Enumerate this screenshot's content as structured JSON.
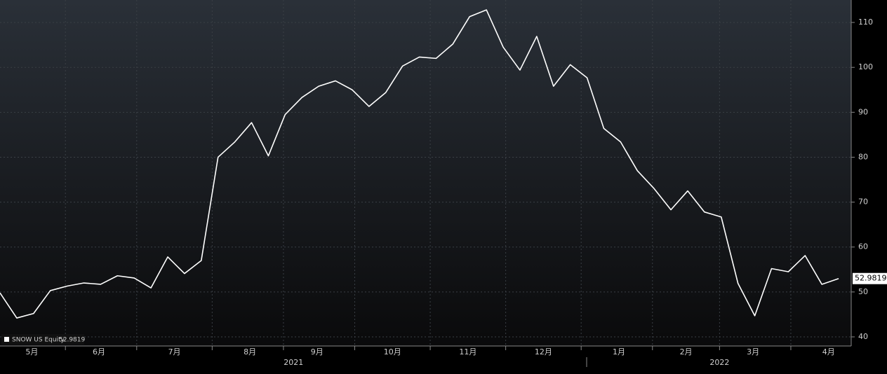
{
  "chart_data": {
    "type": "line",
    "x": [
      0,
      1,
      2,
      3,
      4,
      5,
      6,
      7,
      8,
      9,
      10,
      11,
      12,
      13,
      14,
      15,
      16,
      17,
      18,
      19,
      20,
      21,
      22,
      23,
      24,
      25,
      26,
      27,
      28,
      29,
      30,
      31,
      32,
      33,
      34,
      35,
      36,
      37,
      38,
      39,
      40,
      41,
      42,
      43,
      44,
      45,
      46,
      47,
      48,
      49,
      50
    ],
    "series": [
      {
        "name": "SNOW US Equity",
        "color": "#ffffff",
        "values": [
          49.8,
          44.2,
          45.2,
          50.3,
          51.3,
          52.0,
          51.7,
          53.6,
          53.1,
          50.9,
          57.8,
          54.1,
          57.0,
          80.0,
          83.4,
          87.7,
          80.3,
          89.5,
          93.3,
          95.8,
          97.0,
          95.0,
          91.3,
          94.4,
          100.3,
          102.3,
          102.0,
          105.2,
          111.3,
          112.8,
          104.5,
          99.4,
          106.9,
          95.8,
          100.6,
          97.7,
          86.4,
          83.4,
          77.0,
          73.0,
          68.3,
          72.5,
          67.8,
          66.7,
          51.9,
          44.7,
          55.2,
          54.5,
          58.1,
          51.7,
          52.9819
        ]
      }
    ],
    "xlim": [
      0,
      50.75
    ],
    "xticks": [
      {
        "value": 1.9,
        "label": "5月"
      },
      {
        "value": 5.9,
        "label": "6月"
      },
      {
        "value": 10.4,
        "label": "7月"
      },
      {
        "value": 14.9,
        "label": "8月"
      },
      {
        "value": 18.9,
        "label": "9月"
      },
      {
        "value": 23.4,
        "label": "10月"
      },
      {
        "value": 27.9,
        "label": "11月"
      },
      {
        "value": 32.4,
        "label": "12月"
      },
      {
        "value": 36.9,
        "label": "1月"
      },
      {
        "value": 40.9,
        "label": "2月"
      },
      {
        "value": 44.9,
        "label": "3月"
      },
      {
        "value": 49.4,
        "label": "4月"
      }
    ],
    "year_ticks": [
      {
        "value": 17.5,
        "label": "2021"
      },
      {
        "value": 42.9,
        "label": "2022"
      }
    ],
    "ylim": [
      37.97,
      115
    ],
    "yticks": [
      40,
      50,
      60,
      70,
      80,
      90,
      100,
      110
    ],
    "grid": true
  }
}
